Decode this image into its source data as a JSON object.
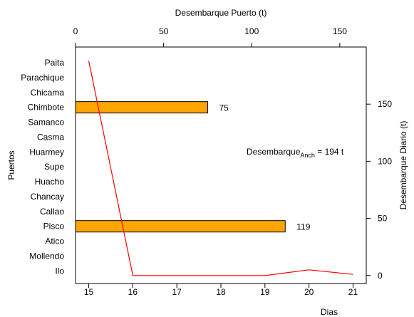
{
  "chart_data": {
    "type": "bar",
    "orientation": "horizontal",
    "top_axis": {
      "title": "Desembarque Puerto (t)",
      "range": [
        0,
        165
      ],
      "ticks": [
        0,
        50,
        100,
        150
      ]
    },
    "left_axis": {
      "title": "Puertos",
      "categories": [
        "Paita",
        "Parachique",
        "Chicama",
        "Chimbote",
        "Samanco",
        "Casma",
        "Huarmey",
        "Supe",
        "Huacho",
        "Chancay",
        "Callao",
        "Pisco",
        "Atico",
        "Mollendo",
        "Ilo"
      ]
    },
    "bars": [
      {
        "category": "Chimbote",
        "value": 75,
        "label": "75"
      },
      {
        "category": "Pisco",
        "value": 119,
        "label": "119"
      }
    ],
    "bottom_axis": {
      "title": "Dias",
      "range": [
        14.7,
        21.3
      ],
      "ticks": [
        15,
        16,
        17,
        18,
        19,
        20,
        21
      ]
    },
    "right_axis": {
      "title": "Desembarque Diario (t)",
      "range": [
        -7,
        200
      ],
      "ticks": [
        0,
        50,
        100,
        150
      ]
    },
    "line": {
      "color": "#ff0000",
      "x": [
        15,
        16,
        17,
        18,
        19,
        20,
        21
      ],
      "y": [
        188,
        0,
        0,
        0,
        0,
        5,
        1
      ]
    },
    "annotation": {
      "main": "Desembarque",
      "sub": "Anch",
      "rest": " = 194 t"
    },
    "colors": {
      "bar_fill": "#ffa500",
      "line": "#ff0000"
    }
  }
}
